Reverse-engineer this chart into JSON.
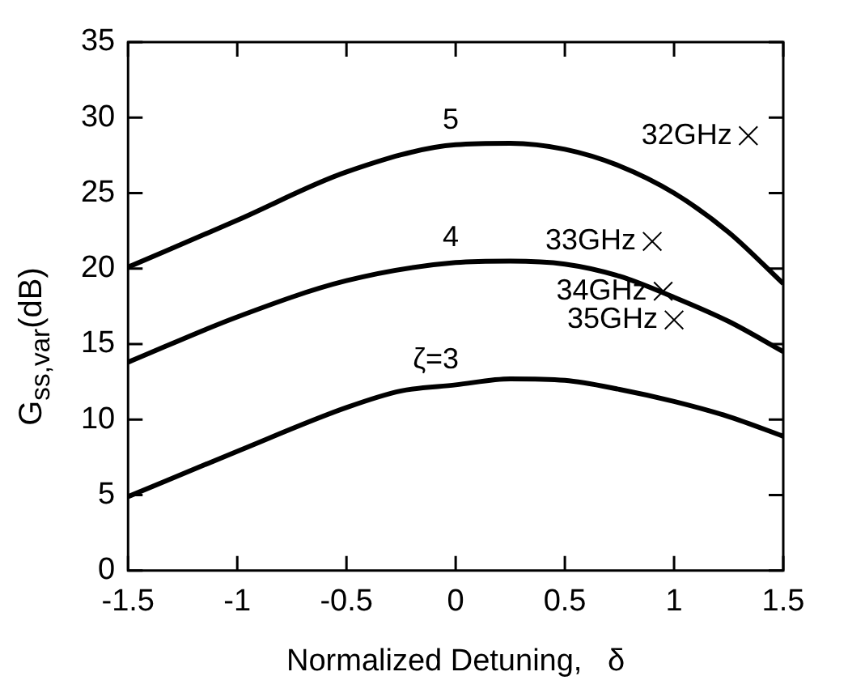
{
  "chart_data": {
    "type": "line",
    "xlabel": "Normalized Detuning,   δ",
    "ylabel": "G$_{ss,var}$(dB)",
    "xlim": [
      -1.5,
      1.5
    ],
    "xticks": [
      -1.5,
      -1,
      -0.5,
      0,
      0.5,
      1,
      1.5
    ],
    "ylim": [
      0,
      35
    ],
    "yticks": [
      0,
      5,
      10,
      15,
      20,
      25,
      30,
      35
    ],
    "grid": false,
    "legend": false,
    "marker": "none",
    "line_style": "solid",
    "series": [
      {
        "name": "5",
        "color": "#000000",
        "x": [
          -1.5,
          -1,
          -0.5,
          0,
          0.25,
          0.5,
          0.75,
          1,
          1.25,
          1.5
        ],
        "values": [
          20.1,
          23.2,
          26.4,
          28.2,
          28.3,
          27.9,
          26.8,
          25,
          22.4,
          19
        ]
      },
      {
        "name": "4",
        "color": "#000000",
        "x": [
          -1.5,
          -1,
          -0.5,
          0,
          0.25,
          0.5,
          0.75,
          1,
          1.25,
          1.5
        ],
        "values": [
          13.8,
          16.8,
          19.2,
          20.4,
          20.5,
          20.3,
          19.5,
          18.1,
          16.5,
          14.5
        ]
      },
      {
        "name": "ζ=3",
        "color": "#000000",
        "x": [
          -1.5,
          -1,
          -0.5,
          -0.25,
          0,
          0.25,
          0.5,
          0.75,
          1,
          1.25,
          1.5
        ],
        "values": [
          4.9,
          7.9,
          10.8,
          11.9,
          12.3,
          12.7,
          12.6,
          12,
          11.2,
          10.2,
          8.9
        ]
      },
      {
        "type": "scatter",
        "marker": "cross",
        "color": "#000000",
        "x": [
          1.34,
          0.9,
          0.95,
          1
        ],
        "values": [
          28.8,
          21.8,
          18.5,
          16.6
        ]
      }
    ],
    "annotations": [
      {
        "text": "32GHz",
        "x": 1.34,
        "y": 28.8
      },
      {
        "text": "33GHz",
        "x": 0.9,
        "y": 21.8
      },
      {
        "text": "34GHz",
        "x": 0.95,
        "y": 18.5
      },
      {
        "text": "35GHz",
        "x": 1,
        "y": 16.6
      }
    ]
  }
}
